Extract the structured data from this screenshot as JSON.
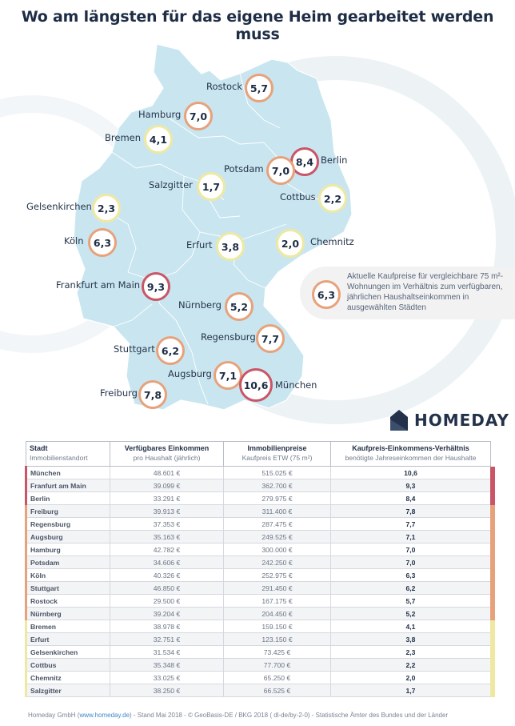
{
  "title": "Wo am längsten für das eigene Heim gearbeitet werden muss",
  "legend": {
    "value": "6,3",
    "text": "Aktuelle Kaufpreise für vergleichbare 75 m²-Wohnungen im Verhältnis zum verfügbaren, jährlichen Haushalts­einkommen in ausgewählten Städten"
  },
  "brand": "HOMEDAY",
  "colors": {
    "red": "#c95566",
    "orange": "#e7a27b",
    "yellow": "#efe8a2",
    "map": "#c9e6f0"
  },
  "chart_data": {
    "type": "table",
    "map_values": [
      {
        "city": "Rostock",
        "value": 5.7,
        "label": "5,7",
        "category": "orange"
      },
      {
        "city": "Hamburg",
        "value": 7.0,
        "label": "7,0",
        "category": "orange"
      },
      {
        "city": "Bremen",
        "value": 4.1,
        "label": "4,1",
        "category": "yellow"
      },
      {
        "city": "Berlin",
        "value": 8.4,
        "label": "8,4",
        "category": "red"
      },
      {
        "city": "Potsdam",
        "value": 7.0,
        "label": "7,0",
        "category": "orange"
      },
      {
        "city": "Salzgitter",
        "value": 1.7,
        "label": "1,7",
        "category": "yellow"
      },
      {
        "city": "Cottbus",
        "value": 2.2,
        "label": "2,2",
        "category": "yellow"
      },
      {
        "city": "Gelsenkirchen",
        "value": 2.3,
        "label": "2,3",
        "category": "yellow"
      },
      {
        "city": "Köln",
        "value": 6.3,
        "label": "6,3",
        "category": "orange"
      },
      {
        "city": "Erfurt",
        "value": 3.8,
        "label": "3,8",
        "category": "yellow"
      },
      {
        "city": "Chemnitz",
        "value": 2.0,
        "label": "2,0",
        "category": "yellow"
      },
      {
        "city": "Frankfurt am Main",
        "value": 9.3,
        "label": "9,3",
        "category": "red"
      },
      {
        "city": "Nürnberg",
        "value": 5.2,
        "label": "5,2",
        "category": "orange"
      },
      {
        "city": "Regensburg",
        "value": 7.7,
        "label": "7,7",
        "category": "orange"
      },
      {
        "city": "Stuttgart",
        "value": 6.2,
        "label": "6,2",
        "category": "orange"
      },
      {
        "city": "Augsburg",
        "value": 7.1,
        "label": "7,1",
        "category": "orange"
      },
      {
        "city": "München",
        "value": 10.6,
        "label": "10,6",
        "category": "red"
      },
      {
        "city": "Freiburg",
        "value": 7.8,
        "label": "7,8",
        "category": "orange"
      }
    ],
    "table": {
      "headers": [
        {
          "title": "Stadt",
          "sub": "Immobilienstandort"
        },
        {
          "title": "Verfügbares Einkommen",
          "sub": "pro Haushalt (jährlich)"
        },
        {
          "title": "Immobilienpreise",
          "sub": "Kaufpreis ETW (75 m²)"
        },
        {
          "title": "Kaufpreis-Einkommens-Verhältnis",
          "sub": "benötigte Jahreseinkommen der Haushalte"
        }
      ],
      "rows": [
        {
          "city": "München",
          "income": "48.601 €",
          "price": "515.025 €",
          "ratio": "10,6",
          "category": "red"
        },
        {
          "city": "Franfurt am Main",
          "income": "39.099 €",
          "price": "362.700 €",
          "ratio": "9,3",
          "category": "red"
        },
        {
          "city": "Berlin",
          "income": "33.291 €",
          "price": "279.975 €",
          "ratio": "8,4",
          "category": "red"
        },
        {
          "city": "Freiburg",
          "income": "39.913 €",
          "price": "311.400 €",
          "ratio": "7,8",
          "category": "orange"
        },
        {
          "city": "Regensburg",
          "income": "37.353 €",
          "price": "287.475 €",
          "ratio": "7,7",
          "category": "orange"
        },
        {
          "city": "Augsburg",
          "income": "35.163 €",
          "price": "249.525 €",
          "ratio": "7,1",
          "category": "orange"
        },
        {
          "city": "Hamburg",
          "income": "42.782 €",
          "price": "300.000 €",
          "ratio": "7,0",
          "category": "orange"
        },
        {
          "city": "Potsdam",
          "income": "34.606 €",
          "price": "242.250 €",
          "ratio": "7,0",
          "category": "orange"
        },
        {
          "city": "Köln",
          "income": "40.326 €",
          "price": "252.975 €",
          "ratio": "6,3",
          "category": "orange"
        },
        {
          "city": "Stuttgart",
          "income": "46.850 €",
          "price": "291.450 €",
          "ratio": "6,2",
          "category": "orange"
        },
        {
          "city": "Rostock",
          "income": "29.500 €",
          "price": "167.175 €",
          "ratio": "5,7",
          "category": "orange"
        },
        {
          "city": "Nürnberg",
          "income": "39.204 €",
          "price": "204.450 €",
          "ratio": "5,2",
          "category": "orange"
        },
        {
          "city": "Bremen",
          "income": "38.978 €",
          "price": "159.150 €",
          "ratio": "4,1",
          "category": "yellow"
        },
        {
          "city": "Erfurt",
          "income": "32.751 €",
          "price": "123.150 €",
          "ratio": "3,8",
          "category": "yellow"
        },
        {
          "city": "Gelsenkirchen",
          "income": "31.534 €",
          "price": "73.425 €",
          "ratio": "2,3",
          "category": "yellow"
        },
        {
          "city": "Cottbus",
          "income": "35.348 €",
          "price": "77.700 €",
          "ratio": "2,2",
          "category": "yellow"
        },
        {
          "city": "Chemnitz",
          "income": "33.025 €",
          "price": "65.250 €",
          "ratio": "2,0",
          "category": "yellow"
        },
        {
          "city": "Salzgitter",
          "income": "38.250 €",
          "price": "66.525 €",
          "ratio": "1,7",
          "category": "yellow"
        }
      ]
    }
  },
  "footer": {
    "prefix": "Homeday GmbH (",
    "link": "www.homeday.de",
    "suffix": ") - Stand Mai 2018 - © GeoBasis-DE / BKG 2018 ( dl-de/by-2-0) - Statistische Ämter des Bundes und der Länder"
  }
}
